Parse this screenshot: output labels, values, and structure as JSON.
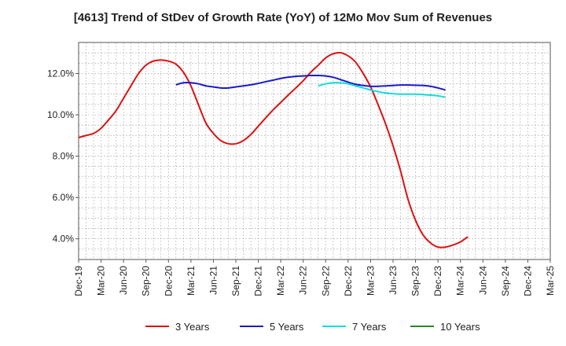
{
  "chart_data": {
    "type": "line",
    "title": "[4613]  Trend of StDev of Growth Rate (YoY) of 12Mo Mov Sum of Revenues",
    "xlabel": "",
    "ylabel": "",
    "ylim": [
      3.0,
      13.5
    ],
    "yticks": [
      4.0,
      6.0,
      8.0,
      10.0,
      12.0
    ],
    "ytick_labels": [
      "4.0%",
      "6.0%",
      "8.0%",
      "10.0%",
      "12.0%"
    ],
    "x_categories": [
      "Dec-19",
      "Mar-20",
      "Jun-20",
      "Sep-20",
      "Dec-20",
      "Mar-21",
      "Jun-21",
      "Sep-21",
      "Dec-21",
      "Mar-22",
      "Jun-22",
      "Sep-22",
      "Dec-22",
      "Mar-23",
      "Jun-23",
      "Sep-23",
      "Dec-23",
      "Mar-24",
      "Jun-24",
      "Sep-24",
      "Dec-24",
      "Mar-25"
    ],
    "grid": true,
    "legend_position": "bottom",
    "series": [
      {
        "name": "3 Years",
        "color": "#dd1111",
        "points": [
          [
            0,
            8.9
          ],
          [
            0.33,
            9.0
          ],
          [
            0.67,
            9.1
          ],
          [
            1,
            9.35
          ],
          [
            1.33,
            9.75
          ],
          [
            1.67,
            10.2
          ],
          [
            2,
            10.8
          ],
          [
            2.33,
            11.4
          ],
          [
            2.67,
            12.0
          ],
          [
            3,
            12.4
          ],
          [
            3.33,
            12.6
          ],
          [
            3.67,
            12.65
          ],
          [
            4,
            12.6
          ],
          [
            4.33,
            12.45
          ],
          [
            4.67,
            12.05
          ],
          [
            5,
            11.4
          ],
          [
            5.33,
            10.5
          ],
          [
            5.67,
            9.6
          ],
          [
            6,
            9.1
          ],
          [
            6.33,
            8.75
          ],
          [
            6.67,
            8.6
          ],
          [
            7,
            8.6
          ],
          [
            7.33,
            8.75
          ],
          [
            7.67,
            9.05
          ],
          [
            8,
            9.45
          ],
          [
            8.33,
            9.85
          ],
          [
            8.67,
            10.25
          ],
          [
            9,
            10.6
          ],
          [
            9.33,
            10.95
          ],
          [
            9.67,
            11.3
          ],
          [
            10,
            11.65
          ],
          [
            10.33,
            12.05
          ],
          [
            10.67,
            12.4
          ],
          [
            11,
            12.75
          ],
          [
            11.33,
            12.95
          ],
          [
            11.67,
            13.0
          ],
          [
            12,
            12.85
          ],
          [
            12.33,
            12.55
          ],
          [
            12.67,
            12.0
          ],
          [
            13,
            11.35
          ],
          [
            13.33,
            10.5
          ],
          [
            13.67,
            9.55
          ],
          [
            14,
            8.5
          ],
          [
            14.33,
            7.3
          ],
          [
            14.67,
            5.9
          ],
          [
            15,
            4.9
          ],
          [
            15.33,
            4.2
          ],
          [
            15.67,
            3.8
          ],
          [
            16,
            3.6
          ],
          [
            16.33,
            3.6
          ],
          [
            16.67,
            3.7
          ],
          [
            17,
            3.85
          ],
          [
            17.33,
            4.1
          ]
        ]
      },
      {
        "name": "5 Years",
        "color": "#1a1acc",
        "points": [
          [
            4.33,
            11.45
          ],
          [
            4.67,
            11.55
          ],
          [
            5,
            11.55
          ],
          [
            5.33,
            11.5
          ],
          [
            5.67,
            11.4
          ],
          [
            6,
            11.35
          ],
          [
            6.33,
            11.3
          ],
          [
            6.67,
            11.3
          ],
          [
            7,
            11.35
          ],
          [
            7.33,
            11.4
          ],
          [
            7.67,
            11.45
          ],
          [
            8,
            11.52
          ],
          [
            8.33,
            11.6
          ],
          [
            8.67,
            11.68
          ],
          [
            9,
            11.76
          ],
          [
            9.33,
            11.82
          ],
          [
            9.67,
            11.86
          ],
          [
            10,
            11.88
          ],
          [
            10.33,
            11.9
          ],
          [
            10.67,
            11.9
          ],
          [
            11,
            11.88
          ],
          [
            11.33,
            11.82
          ],
          [
            11.67,
            11.7
          ],
          [
            12,
            11.58
          ],
          [
            12.33,
            11.48
          ],
          [
            12.67,
            11.42
          ],
          [
            13,
            11.38
          ],
          [
            13.33,
            11.38
          ],
          [
            13.67,
            11.4
          ],
          [
            14,
            11.42
          ],
          [
            14.33,
            11.44
          ],
          [
            14.67,
            11.44
          ],
          [
            15,
            11.43
          ],
          [
            15.33,
            11.42
          ],
          [
            15.67,
            11.38
          ],
          [
            16,
            11.3
          ],
          [
            16.33,
            11.2
          ]
        ]
      },
      {
        "name": "7 Years",
        "color": "#11dddd",
        "points": [
          [
            10.67,
            11.4
          ],
          [
            11,
            11.5
          ],
          [
            11.33,
            11.55
          ],
          [
            11.67,
            11.55
          ],
          [
            12,
            11.5
          ],
          [
            12.33,
            11.4
          ],
          [
            12.67,
            11.3
          ],
          [
            13,
            11.2
          ],
          [
            13.33,
            11.12
          ],
          [
            13.67,
            11.06
          ],
          [
            14,
            11.02
          ],
          [
            14.33,
            11.0
          ],
          [
            14.67,
            11.0
          ],
          [
            15,
            11.0
          ],
          [
            15.33,
            10.98
          ],
          [
            15.67,
            10.95
          ],
          [
            16,
            10.92
          ],
          [
            16.33,
            10.85
          ]
        ]
      },
      {
        "name": "10 Years",
        "color": "#228822",
        "points": []
      }
    ]
  }
}
